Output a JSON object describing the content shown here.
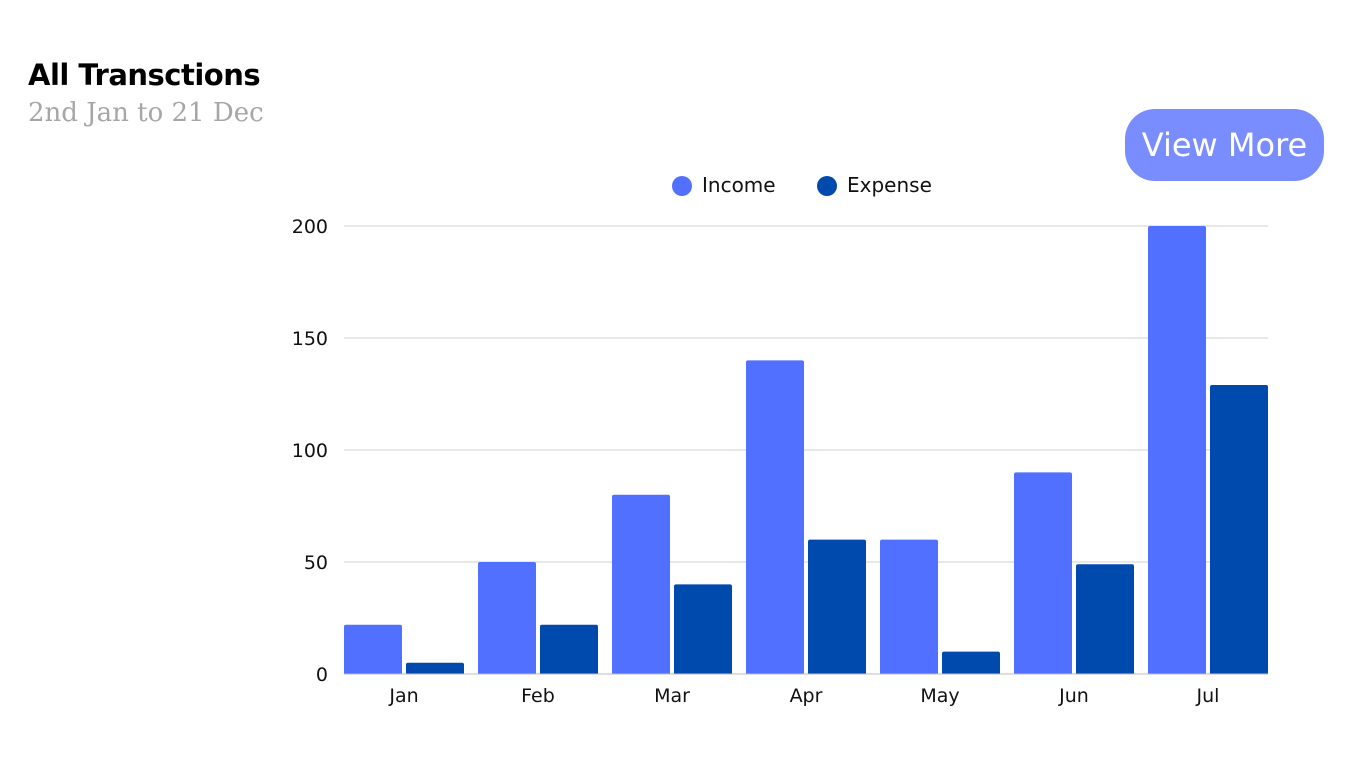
{
  "header": {
    "title": "All Transctions",
    "subtitle": "2nd Jan to 21 Dec"
  },
  "actions": {
    "view_more_label": "View More"
  },
  "colors": {
    "income": "#5170ff",
    "expense": "#004aad",
    "button": "#7a8dff",
    "grid": "#d0d0d0"
  },
  "chart_data": {
    "type": "bar",
    "categories": [
      "Jan",
      "Feb",
      "Mar",
      "Apr",
      "May",
      "Jun",
      "Jul"
    ],
    "series": [
      {
        "name": "Income",
        "values": [
          22,
          50,
          80,
          140,
          60,
          90,
          200
        ]
      },
      {
        "name": "Expense",
        "values": [
          5,
          22,
          40,
          60,
          10,
          49,
          129
        ]
      }
    ],
    "yticks": [
      0,
      50,
      100,
      150,
      200
    ],
    "ylim": [
      0,
      200
    ],
    "grid": true,
    "legend": "top-center",
    "xlabel": "",
    "ylabel": ""
  }
}
